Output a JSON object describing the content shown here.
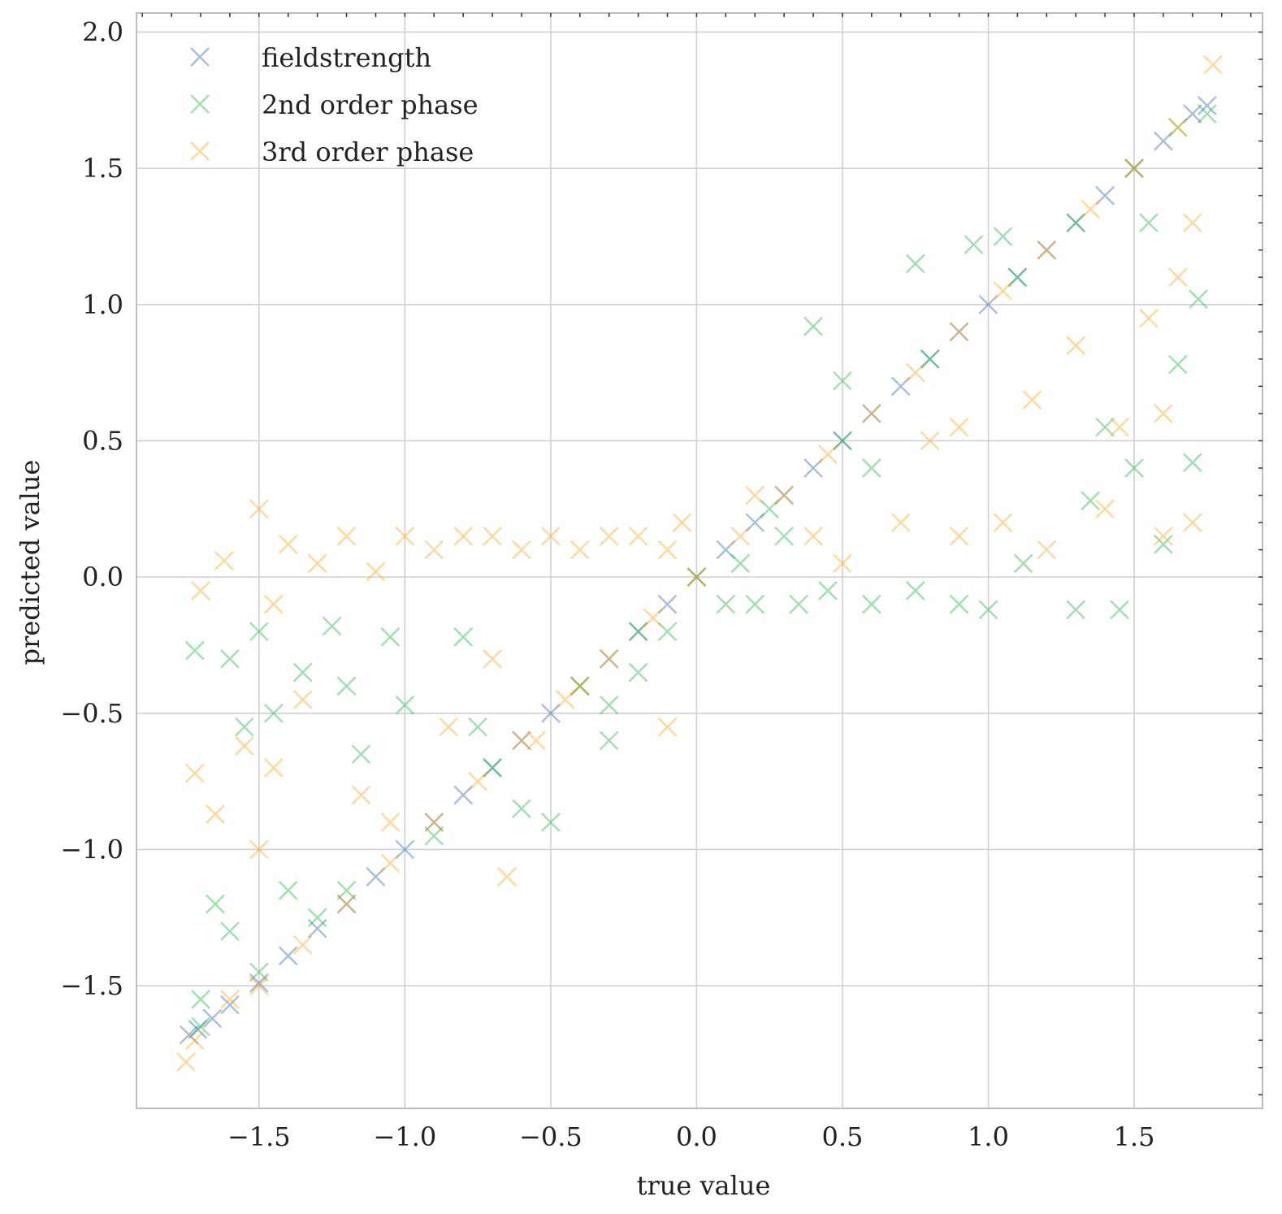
{
  "chart_data": {
    "type": "scatter",
    "title": "",
    "xlabel": "true value",
    "ylabel": "predicted value",
    "xlim": [
      -1.92,
      1.94
    ],
    "ylim": [
      -1.95,
      2.07
    ],
    "xticks": [
      -1.5,
      -1.0,
      -0.5,
      0.0,
      0.5,
      1.0,
      1.5
    ],
    "yticks": [
      -1.5,
      -1.0,
      -0.5,
      0.0,
      0.5,
      1.0,
      1.5,
      2.0
    ],
    "xtick_labels": [
      "−1.5",
      "−1.0",
      "−0.5",
      "0.0",
      "0.5",
      "1.0",
      "1.5"
    ],
    "ytick_labels": [
      "−1.5",
      "−1.0",
      "−0.5",
      "0.0",
      "0.5",
      "1.0",
      "1.5",
      "2.0"
    ],
    "grid": true,
    "legend_position": "top-left",
    "marker": "x",
    "series": [
      {
        "name": "fieldstrength",
        "color": "#3b6fb6",
        "points": [
          [
            -1.74,
            -1.68
          ],
          [
            -1.71,
            -1.66
          ],
          [
            -1.66,
            -1.62
          ],
          [
            -1.6,
            -1.57
          ],
          [
            -1.5,
            -1.49
          ],
          [
            -1.4,
            -1.39
          ],
          [
            -1.3,
            -1.29
          ],
          [
            -1.2,
            -1.2
          ],
          [
            -1.1,
            -1.1
          ],
          [
            -1.0,
            -1.0
          ],
          [
            -0.9,
            -0.9
          ],
          [
            -0.8,
            -0.8
          ],
          [
            -0.7,
            -0.7
          ],
          [
            -0.6,
            -0.6
          ],
          [
            -0.5,
            -0.5
          ],
          [
            -0.4,
            -0.4
          ],
          [
            -0.3,
            -0.3
          ],
          [
            -0.2,
            -0.2
          ],
          [
            -0.1,
            -0.1
          ],
          [
            0.0,
            0.0
          ],
          [
            0.1,
            0.1
          ],
          [
            0.2,
            0.2
          ],
          [
            0.3,
            0.3
          ],
          [
            0.4,
            0.4
          ],
          [
            0.5,
            0.5
          ],
          [
            0.6,
            0.6
          ],
          [
            0.7,
            0.7
          ],
          [
            0.8,
            0.8
          ],
          [
            0.9,
            0.9
          ],
          [
            1.0,
            1.0
          ],
          [
            1.1,
            1.1
          ],
          [
            1.2,
            1.2
          ],
          [
            1.3,
            1.3
          ],
          [
            1.4,
            1.4
          ],
          [
            1.5,
            1.5
          ],
          [
            1.6,
            1.6
          ],
          [
            1.7,
            1.7
          ],
          [
            1.75,
            1.73
          ]
        ]
      },
      {
        "name": "2nd order phase",
        "color": "#2db84d",
        "points": [
          [
            -1.7,
            -1.55
          ],
          [
            -1.65,
            -1.2
          ],
          [
            -1.72,
            -0.27
          ],
          [
            -1.6,
            -0.3
          ],
          [
            -1.55,
            -0.55
          ],
          [
            -1.5,
            -0.2
          ],
          [
            -1.45,
            -0.5
          ],
          [
            -1.35,
            -0.35
          ],
          [
            -1.25,
            -0.18
          ],
          [
            -1.2,
            -0.4
          ],
          [
            -1.15,
            -0.65
          ],
          [
            -1.05,
            -0.22
          ],
          [
            -1.0,
            -0.47
          ],
          [
            -0.8,
            -0.22
          ],
          [
            -0.75,
            -0.55
          ],
          [
            -0.6,
            -0.85
          ],
          [
            -0.5,
            -0.9
          ],
          [
            -0.3,
            -0.6
          ],
          [
            -0.2,
            -0.35
          ],
          [
            -0.1,
            -0.2
          ],
          [
            0.1,
            -0.1
          ],
          [
            0.2,
            -0.1
          ],
          [
            0.35,
            -0.1
          ],
          [
            0.45,
            -0.05
          ],
          [
            0.6,
            -0.1
          ],
          [
            0.75,
            -0.05
          ],
          [
            0.9,
            -0.1
          ],
          [
            1.0,
            -0.12
          ],
          [
            1.12,
            0.05
          ],
          [
            1.3,
            -0.12
          ],
          [
            1.45,
            -0.12
          ],
          [
            1.5,
            0.4
          ],
          [
            1.6,
            0.12
          ],
          [
            1.7,
            0.42
          ],
          [
            1.72,
            1.02
          ],
          [
            1.65,
            0.78
          ],
          [
            1.55,
            1.3
          ],
          [
            1.4,
            0.55
          ],
          [
            1.35,
            0.28
          ],
          [
            0.4,
            0.92
          ],
          [
            0.75,
            1.15
          ],
          [
            0.95,
            1.22
          ],
          [
            1.05,
            1.25
          ],
          [
            0.6,
            0.4
          ],
          [
            0.5,
            0.72
          ],
          [
            -0.3,
            -0.47
          ],
          [
            -0.4,
            -0.4
          ],
          [
            -0.9,
            -0.95
          ],
          [
            -1.4,
            -1.15
          ],
          [
            -1.3,
            -1.25
          ],
          [
            -1.6,
            -1.3
          ],
          [
            -1.5,
            -1.45
          ],
          [
            0.3,
            0.15
          ],
          [
            0.15,
            0.05
          ],
          [
            0.0,
            0.0
          ],
          [
            0.25,
            0.25
          ],
          [
            0.5,
            0.5
          ],
          [
            0.8,
            0.8
          ],
          [
            1.1,
            1.1
          ],
          [
            1.3,
            1.3
          ],
          [
            1.5,
            1.5
          ],
          [
            1.65,
            1.65
          ],
          [
            1.75,
            1.7
          ],
          [
            -1.7,
            -1.65
          ],
          [
            -1.2,
            -1.15
          ],
          [
            -0.7,
            -0.7
          ],
          [
            -0.2,
            -0.2
          ]
        ]
      },
      {
        "name": "3rd order phase",
        "color": "#ffa726",
        "points": [
          [
            -1.75,
            -1.78
          ],
          [
            -1.72,
            -0.72
          ],
          [
            -1.7,
            -0.05
          ],
          [
            -1.62,
            0.06
          ],
          [
            -1.65,
            -0.87
          ],
          [
            -1.55,
            -0.62
          ],
          [
            -1.5,
            0.25
          ],
          [
            -1.45,
            -0.1
          ],
          [
            -1.4,
            0.12
          ],
          [
            -1.3,
            0.05
          ],
          [
            -1.2,
            0.15
          ],
          [
            -1.1,
            0.02
          ],
          [
            -1.0,
            0.15
          ],
          [
            -0.9,
            0.1
          ],
          [
            -0.8,
            0.15
          ],
          [
            -0.7,
            0.15
          ],
          [
            -0.6,
            0.1
          ],
          [
            -0.5,
            0.15
          ],
          [
            -0.4,
            0.1
          ],
          [
            -0.3,
            0.15
          ],
          [
            -0.2,
            0.15
          ],
          [
            -0.1,
            0.1
          ],
          [
            -0.05,
            0.2
          ],
          [
            -1.35,
            -0.45
          ],
          [
            -1.45,
            -0.7
          ],
          [
            -1.15,
            -0.8
          ],
          [
            -1.5,
            -1.0
          ],
          [
            -1.05,
            -0.9
          ],
          [
            -0.85,
            -0.55
          ],
          [
            -0.7,
            -0.3
          ],
          [
            -0.55,
            -0.6
          ],
          [
            -0.4,
            -0.4
          ],
          [
            -0.1,
            -0.55
          ],
          [
            -0.65,
            -1.1
          ],
          [
            0.2,
            0.3
          ],
          [
            0.4,
            0.15
          ],
          [
            0.5,
            0.05
          ],
          [
            0.7,
            0.2
          ],
          [
            0.9,
            0.15
          ],
          [
            1.05,
            0.2
          ],
          [
            1.2,
            0.1
          ],
          [
            1.4,
            0.25
          ],
          [
            1.6,
            0.15
          ],
          [
            1.7,
            0.2
          ],
          [
            1.55,
            0.95
          ],
          [
            1.6,
            0.6
          ],
          [
            1.7,
            1.3
          ],
          [
            1.65,
            1.1
          ],
          [
            1.45,
            0.55
          ],
          [
            1.3,
            0.85
          ],
          [
            1.15,
            0.65
          ],
          [
            0.9,
            0.55
          ],
          [
            0.8,
            0.5
          ],
          [
            -1.72,
            -1.7
          ],
          [
            -1.6,
            -1.55
          ],
          [
            -1.5,
            -1.5
          ],
          [
            -1.35,
            -1.35
          ],
          [
            -1.2,
            -1.2
          ],
          [
            -1.05,
            -1.05
          ],
          [
            -0.9,
            -0.9
          ],
          [
            -0.75,
            -0.75
          ],
          [
            -0.6,
            -0.6
          ],
          [
            -0.45,
            -0.45
          ],
          [
            -0.3,
            -0.3
          ],
          [
            -0.15,
            -0.15
          ],
          [
            0.0,
            0.0
          ],
          [
            0.15,
            0.15
          ],
          [
            0.3,
            0.3
          ],
          [
            0.45,
            0.45
          ],
          [
            0.6,
            0.6
          ],
          [
            0.75,
            0.75
          ],
          [
            0.9,
            0.9
          ],
          [
            1.05,
            1.05
          ],
          [
            1.2,
            1.2
          ],
          [
            1.35,
            1.35
          ],
          [
            1.5,
            1.5
          ],
          [
            1.65,
            1.65
          ],
          [
            1.77,
            1.88
          ]
        ]
      }
    ]
  }
}
